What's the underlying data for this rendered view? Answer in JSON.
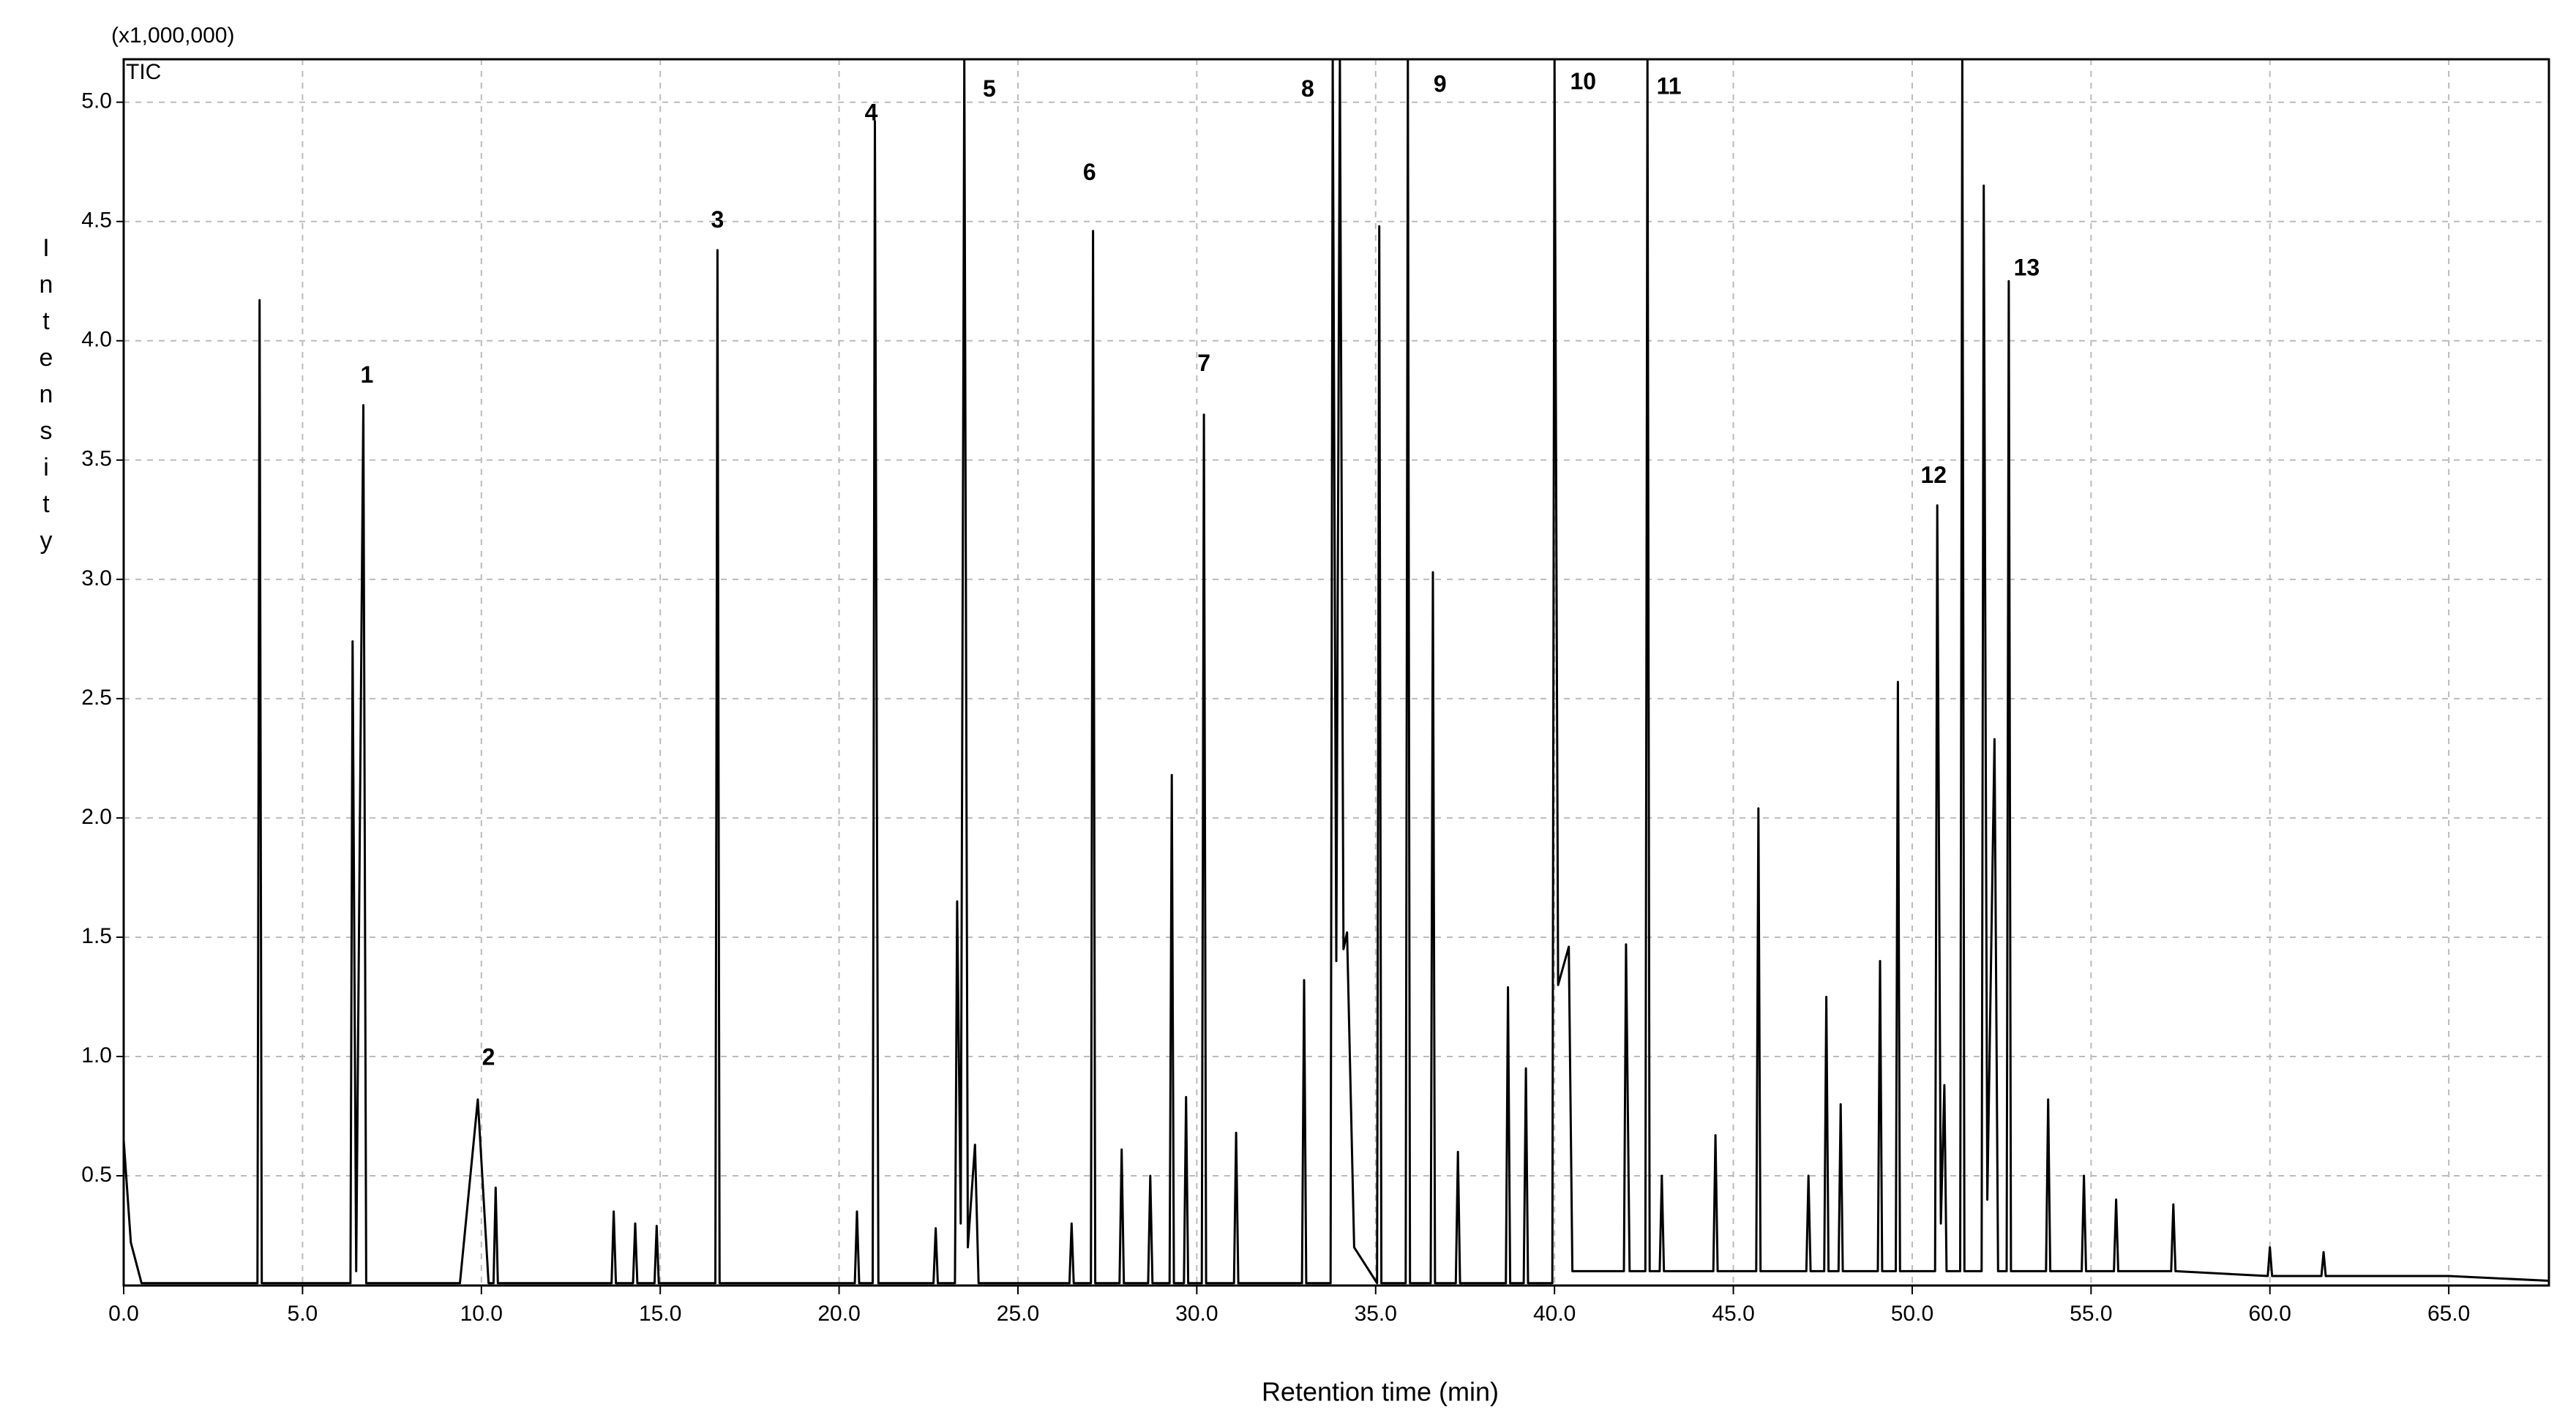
{
  "chart_data": {
    "type": "line",
    "title": "TIC",
    "subtitle": "(x1,000,000)",
    "x_label": "Retention time (min)",
    "y_label": "Intensity",
    "grid": true,
    "xlim": [
      0,
      67.8
    ],
    "ylim": [
      0.04,
      5.18
    ],
    "xticks": [
      {
        "value": 0,
        "label": "0.0"
      },
      {
        "value": 5,
        "label": "5.0"
      },
      {
        "value": 10,
        "label": "10.0"
      },
      {
        "value": 15,
        "label": "15.0"
      },
      {
        "value": 20,
        "label": "20.0"
      },
      {
        "value": 25,
        "label": "25.0"
      },
      {
        "value": 30,
        "label": "30.0"
      },
      {
        "value": 35,
        "label": "35.0"
      },
      {
        "value": 40,
        "label": "40.0"
      },
      {
        "value": 45,
        "label": "45.0"
      },
      {
        "value": 50,
        "label": "50.0"
      },
      {
        "value": 55,
        "label": "55.0"
      },
      {
        "value": 60,
        "label": "60.0"
      },
      {
        "value": 65,
        "label": "65.0"
      }
    ],
    "yticks": [
      0.5,
      {
        "value": 1,
        "label": "1.0"
      },
      1.5,
      {
        "value": 2,
        "label": "2.0"
      },
      2.5,
      {
        "value": 3,
        "label": "3.0"
      },
      3.5,
      {
        "value": 4,
        "label": "4.0"
      },
      4.5,
      {
        "value": 5,
        "label": "5.0"
      }
    ],
    "series": [
      {
        "color": "#000000",
        "x": [
          0,
          0.2,
          0.5,
          3.74,
          3.8,
          3.86,
          6.34,
          6.4,
          6.5,
          6.7,
          6.78,
          9.4,
          9.9,
          10.2,
          10.34,
          10.4,
          10.46,
          13.64,
          13.7,
          13.76,
          14.24,
          14.3,
          14.36,
          14.84,
          14.9,
          14.96,
          16.54,
          16.6,
          16.66,
          20.44,
          20.5,
          20.56,
          20.94,
          21.0,
          21.1,
          22.64,
          22.7,
          22.76,
          23.24,
          23.3,
          23.4,
          23.5,
          23.6,
          23.8,
          23.9,
          26.44,
          26.5,
          26.56,
          27.04,
          27.1,
          27.16,
          27.84,
          27.9,
          27.96,
          28.64,
          28.7,
          28.76,
          29.24,
          29.3,
          29.36,
          29.64,
          29.7,
          29.76,
          30.14,
          30.2,
          30.26,
          31.04,
          31.1,
          31.16,
          32.94,
          33.0,
          33.06,
          33.74,
          33.8,
          33.9,
          34.0,
          34.1,
          34.2,
          34.4,
          35.04,
          35.1,
          35.16,
          35.84,
          35.9,
          35.96,
          36.54,
          36.6,
          36.66,
          37.24,
          37.3,
          37.36,
          38.64,
          38.7,
          38.76,
          39.14,
          39.2,
          39.26,
          39.94,
          40.0,
          40.1,
          40.4,
          40.5,
          41.94,
          42.0,
          42.1,
          42.54,
          42.6,
          42.66,
          42.94,
          43.0,
          43.06,
          44.44,
          44.5,
          44.56,
          45.64,
          45.7,
          45.76,
          47.04,
          47.1,
          47.16,
          47.54,
          47.6,
          47.66,
          47.94,
          48.0,
          48.06,
          49.04,
          49.1,
          49.16,
          49.54,
          49.6,
          49.66,
          50.64,
          50.7,
          50.8,
          50.9,
          50.96,
          51.34,
          51.4,
          51.46,
          51.94,
          52.0,
          52.1,
          52.3,
          52.4,
          52.64,
          52.7,
          52.76,
          53.74,
          53.8,
          53.86,
          54.74,
          54.8,
          54.86,
          55.64,
          55.7,
          55.76,
          57.24,
          57.3,
          57.36,
          59.94,
          60.0,
          60.06,
          61.44,
          61.5,
          61.56,
          65.0,
          67.8
        ],
        "values": [
          0.65,
          0.22,
          0.05,
          0.05,
          4.17,
          0.05,
          0.05,
          2.74,
          0.1,
          3.73,
          0.05,
          0.05,
          0.82,
          0.05,
          0.05,
          0.45,
          0.05,
          0.05,
          0.35,
          0.05,
          0.05,
          0.3,
          0.05,
          0.05,
          0.29,
          0.05,
          0.05,
          4.38,
          0.05,
          0.05,
          0.35,
          0.05,
          0.05,
          4.92,
          0.05,
          0.05,
          0.28,
          0.05,
          0.05,
          1.65,
          0.3,
          5.19,
          0.2,
          0.63,
          0.05,
          0.05,
          0.3,
          0.05,
          0.05,
          4.46,
          0.05,
          0.05,
          0.61,
          0.05,
          0.05,
          0.5,
          0.05,
          0.05,
          2.18,
          0.05,
          0.05,
          0.83,
          0.05,
          0.05,
          3.69,
          0.05,
          0.05,
          0.68,
          0.05,
          0.05,
          1.32,
          0.05,
          0.05,
          5.19,
          1.4,
          5.19,
          1.45,
          1.52,
          0.2,
          0.05,
          4.48,
          0.05,
          0.05,
          5.19,
          0.05,
          0.05,
          3.03,
          0.05,
          0.05,
          0.6,
          0.05,
          0.05,
          1.29,
          0.05,
          0.05,
          0.95,
          0.05,
          0.05,
          5.19,
          1.3,
          1.46,
          0.1,
          0.1,
          1.47,
          0.1,
          0.1,
          5.19,
          0.1,
          0.1,
          0.5,
          0.1,
          0.1,
          0.67,
          0.1,
          0.1,
          2.04,
          0.1,
          0.1,
          0.5,
          0.1,
          0.1,
          1.25,
          0.1,
          0.1,
          0.8,
          0.1,
          0.1,
          1.4,
          0.1,
          0.1,
          2.57,
          0.1,
          0.1,
          3.31,
          0.3,
          0.88,
          0.1,
          0.1,
          5.19,
          0.1,
          0.1,
          4.65,
          0.4,
          2.33,
          0.1,
          0.1,
          4.25,
          0.1,
          0.1,
          0.82,
          0.1,
          0.1,
          0.5,
          0.1,
          0.1,
          0.4,
          0.1,
          0.1,
          0.38,
          0.1,
          0.08,
          0.2,
          0.08,
          0.08,
          0.18,
          0.08,
          0.08,
          0.06
        ]
      }
    ],
    "annotations": [
      {
        "text": "1",
        "x": 6.8,
        "y": 3.85
      },
      {
        "text": "2",
        "x": 10.2,
        "y": 0.99
      },
      {
        "text": "3",
        "x": 16.6,
        "y": 4.5
      },
      {
        "text": "4",
        "x": 20.9,
        "y": 4.95
      },
      {
        "text": "5",
        "x": 24.2,
        "y": 5.05
      },
      {
        "text": "6",
        "x": 27.0,
        "y": 4.7
      },
      {
        "text": "7",
        "x": 30.2,
        "y": 3.9
      },
      {
        "text": "8",
        "x": 33.1,
        "y": 5.05
      },
      {
        "text": "9",
        "x": 36.8,
        "y": 5.07
      },
      {
        "text": "10",
        "x": 40.8,
        "y": 5.08
      },
      {
        "text": "11",
        "x": 43.2,
        "y": 5.06
      },
      {
        "text": "12",
        "x": 50.6,
        "y": 3.43
      },
      {
        "text": "13",
        "x": 53.2,
        "y": 4.3
      }
    ]
  }
}
